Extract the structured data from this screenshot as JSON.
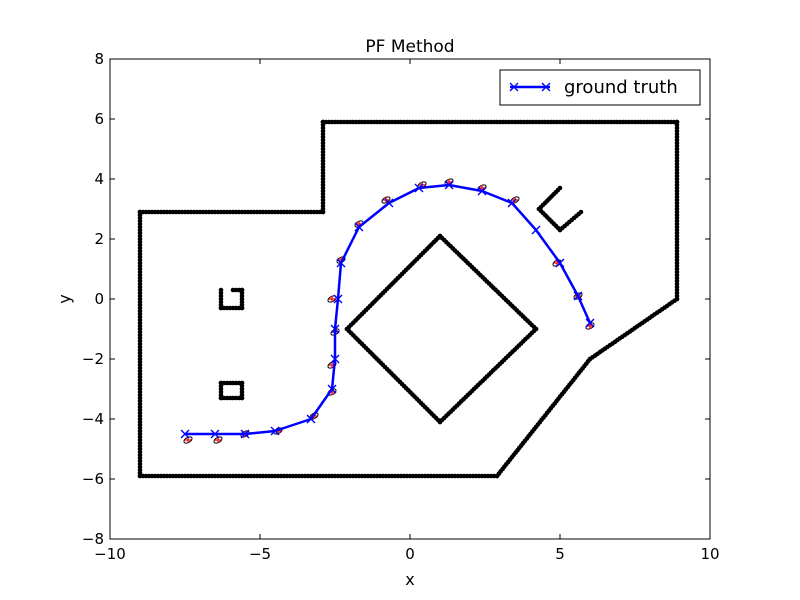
{
  "chart_data": {
    "type": "line",
    "title": "PF Method",
    "xlabel": "x",
    "ylabel": "y",
    "xlim": [
      -10,
      10
    ],
    "ylim": [
      -8,
      8
    ],
    "x_ticks": [
      -10,
      -5,
      0,
      5,
      10
    ],
    "x_tick_labels": [
      "−10",
      "−5",
      "0",
      "5",
      "10"
    ],
    "y_ticks": [
      -8,
      -6,
      -4,
      -2,
      0,
      2,
      4,
      6,
      8
    ],
    "y_tick_labels": [
      "−8",
      "−6",
      "−4",
      "−2",
      "0",
      "2",
      "4",
      "6",
      "8"
    ],
    "grid": false,
    "legend_position": "top-right",
    "series": [
      {
        "name": "ground truth",
        "color": "#0000ff",
        "marker": "x",
        "x": [
          -7.5,
          -6.5,
          -5.5,
          -4.5,
          -3.3,
          -2.6,
          -2.5,
          -2.5,
          -2.4,
          -2.3,
          -1.7,
          -0.7,
          0.3,
          1.3,
          2.4,
          3.4,
          4.2,
          5.0,
          5.6,
          6.0
        ],
        "y": [
          -4.5,
          -4.5,
          -4.5,
          -4.4,
          -4.0,
          -3.0,
          -2.0,
          -1.0,
          0.0,
          1.2,
          2.4,
          3.2,
          3.7,
          3.8,
          3.6,
          3.2,
          2.3,
          1.2,
          0.1,
          -0.8
        ]
      }
    ],
    "particle_ellipses": {
      "color": "#ff0000",
      "points": [
        {
          "x": -7.4,
          "y": -4.7
        },
        {
          "x": -6.4,
          "y": -4.7
        },
        {
          "x": -5.5,
          "y": -4.5
        },
        {
          "x": -4.4,
          "y": -4.4
        },
        {
          "x": -3.2,
          "y": -3.9
        },
        {
          "x": -2.6,
          "y": -3.1
        },
        {
          "x": -2.6,
          "y": -2.2
        },
        {
          "x": -2.5,
          "y": -1.1
        },
        {
          "x": -2.6,
          "y": 0.0
        },
        {
          "x": -2.3,
          "y": 1.3
        },
        {
          "x": -1.7,
          "y": 2.5
        },
        {
          "x": -0.8,
          "y": 3.3
        },
        {
          "x": 0.4,
          "y": 3.8
        },
        {
          "x": 1.3,
          "y": 3.9
        },
        {
          "x": 2.4,
          "y": 3.7
        },
        {
          "x": 3.5,
          "y": 3.3
        },
        {
          "x": 4.9,
          "y": 1.2
        },
        {
          "x": 5.6,
          "y": 0.1
        },
        {
          "x": 6.0,
          "y": -0.9
        }
      ]
    },
    "map_points": {
      "color": "#000000",
      "paths": [
        {
          "closed": false,
          "points": [
            [
              -9,
              -5.9
            ],
            [
              -9,
              2.9
            ],
            [
              -2.9,
              2.9
            ],
            [
              -2.9,
              5.9
            ],
            [
              8.9,
              5.9
            ],
            [
              8.9,
              0.0
            ],
            [
              6.0,
              -2.0
            ],
            [
              2.9,
              -5.9
            ],
            [
              -9,
              -5.9
            ]
          ]
        },
        {
          "closed": false,
          "points": [
            [
              1.0,
              2.1
            ],
            [
              4.2,
              -1.0
            ],
            [
              1.0,
              -4.1
            ],
            [
              -2.1,
              -1.0
            ],
            [
              1.0,
              2.1
            ]
          ]
        },
        {
          "closed": false,
          "points": [
            [
              5.0,
              3.7
            ],
            [
              4.3,
              3.0
            ],
            [
              5.0,
              2.3
            ],
            [
              5.7,
              2.9
            ]
          ]
        },
        {
          "closed": false,
          "points": [
            [
              -5.9,
              0.3
            ],
            [
              -5.6,
              0.3
            ],
            [
              -5.6,
              -0.3
            ],
            [
              -6.3,
              -0.3
            ],
            [
              -6.3,
              0.3
            ]
          ]
        },
        {
          "closed": false,
          "points": [
            [
              -6.3,
              -2.8
            ],
            [
              -5.6,
              -2.8
            ],
            [
              -5.6,
              -3.3
            ],
            [
              -6.3,
              -3.3
            ],
            [
              -6.3,
              -2.8
            ]
          ]
        }
      ]
    }
  }
}
